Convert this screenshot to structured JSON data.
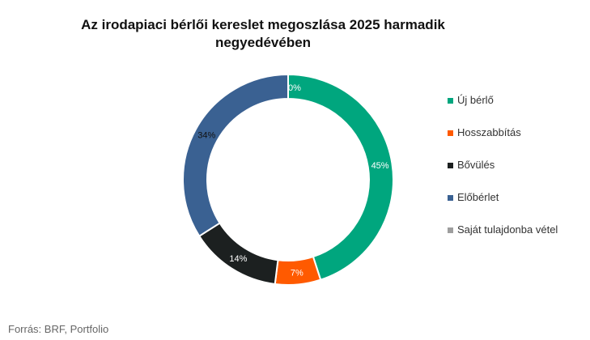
{
  "chart_data": {
    "type": "pie",
    "title": "Az irodapiaci bérlői kereslet megoszlása 2025 harmadik negyedévében",
    "categories": [
      "Új bérlő",
      "Hosszabbítás",
      "Bővülés",
      "Előbérlet",
      "Saját tulajdonba vétel"
    ],
    "values": [
      45,
      7,
      14,
      34,
      0
    ],
    "data_labels": [
      "45%",
      "7%",
      "14%",
      "34%",
      "0%"
    ],
    "colors": [
      "#00a67e",
      "#ff5a00",
      "#1c2020",
      "#3a6192",
      "#9e9e9e"
    ],
    "hole": "donut",
    "legend_position": "right"
  },
  "source": "Forrás: BRF, Portfolio"
}
